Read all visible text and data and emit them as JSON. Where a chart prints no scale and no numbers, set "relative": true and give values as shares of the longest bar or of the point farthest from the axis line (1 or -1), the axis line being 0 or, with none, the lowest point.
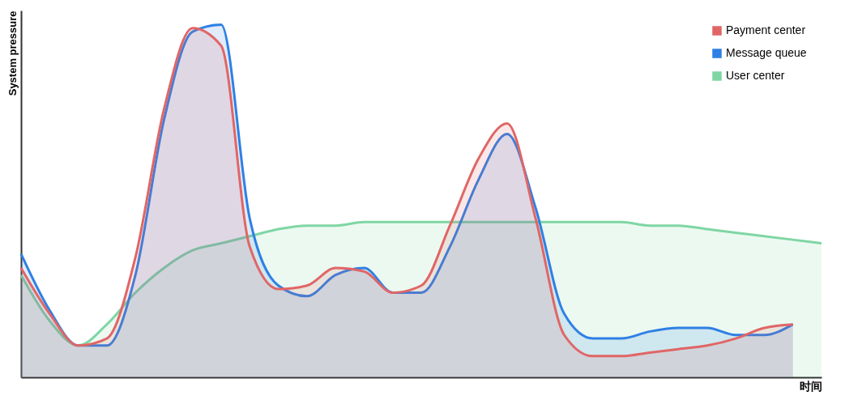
{
  "chart_data": {
    "type": "area",
    "xlabel": "时间",
    "ylabel": "System pressure",
    "relative": true,
    "legend": "top right",
    "categories": [
      null,
      null,
      null,
      null,
      null,
      null,
      null,
      null,
      null,
      null,
      null,
      null,
      null,
      null,
      null,
      null,
      null,
      null,
      null,
      null,
      null,
      null,
      null,
      null,
      null,
      null,
      null,
      null,
      null
    ],
    "series": [
      {
        "name": "Payment center",
        "color": "#e06666",
        "values": [
          0.31,
          0.18,
          0.09,
          0.11,
          0.34,
          0.76,
          0.99,
          0.94,
          0.37,
          0.25,
          0.26,
          0.31,
          0.3,
          0.24,
          0.26,
          0.43,
          0.62,
          0.72,
          0.45,
          0.12,
          0.06,
          0.06,
          0.07,
          0.08,
          0.09,
          0.11,
          0.14,
          0.15,
          null
        ]
      },
      {
        "name": "Message queue",
        "color": "#2f80e4",
        "values": [
          0.35,
          0.19,
          0.09,
          0.09,
          0.29,
          0.73,
          0.98,
          1,
          0.45,
          0.26,
          0.23,
          0.29,
          0.31,
          0.24,
          0.24,
          0.37,
          0.56,
          0.69,
          0.48,
          0.18,
          0.11,
          0.11,
          0.13,
          0.14,
          0.14,
          0.12,
          0.12,
          0.15,
          null
        ]
      },
      {
        "name": "User center",
        "color": "#7fd6a4",
        "values": [
          0.29,
          0.16,
          0.09,
          0.15,
          0.24,
          0.31,
          0.36,
          0.38,
          0.4,
          0.42,
          0.43,
          0.43,
          0.44,
          0.44,
          0.44,
          0.44,
          0.44,
          0.44,
          0.44,
          0.44,
          0.44,
          0.44,
          0.43,
          0.43,
          0.42,
          0.41,
          0.4,
          0.39,
          0.38
        ]
      }
    ]
  }
}
